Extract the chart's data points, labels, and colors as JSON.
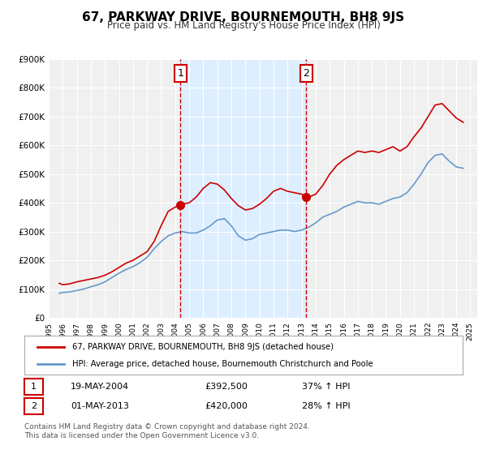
{
  "title": "67, PARKWAY DRIVE, BOURNEMOUTH, BH8 9JS",
  "subtitle": "Price paid vs. HM Land Registry's House Price Index (HPI)",
  "background_color": "#ffffff",
  "plot_bg_color": "#f0f0f0",
  "grid_color": "#ffffff",
  "ylim": [
    0,
    900000
  ],
  "yticks": [
    0,
    100000,
    200000,
    300000,
    400000,
    500000,
    600000,
    700000,
    800000,
    900000
  ],
  "ytick_labels": [
    "£0",
    "£100K",
    "£200K",
    "£300K",
    "£400K",
    "£500K",
    "£600K",
    "£700K",
    "£800K",
    "£900K"
  ],
  "xlim_start": 1995.0,
  "xlim_end": 2025.5,
  "xticks": [
    1995,
    1996,
    1997,
    1998,
    1999,
    2000,
    2001,
    2002,
    2003,
    2004,
    2005,
    2006,
    2007,
    2008,
    2009,
    2010,
    2011,
    2012,
    2013,
    2014,
    2015,
    2016,
    2017,
    2018,
    2019,
    2020,
    2021,
    2022,
    2023,
    2024,
    2025
  ],
  "price_paid_color": "#cc0000",
  "hpi_color": "#6699cc",
  "marker_color": "#cc0000",
  "transaction1_x": 2004.38,
  "transaction1_y": 392500,
  "transaction1_label": "1",
  "transaction1_date": "19-MAY-2004",
  "transaction1_price": "£392,500",
  "transaction1_hpi": "37% ↑ HPI",
  "transaction2_x": 2013.33,
  "transaction2_y": 420000,
  "transaction2_label": "2",
  "transaction2_date": "01-MAY-2013",
  "transaction2_price": "£420,000",
  "transaction2_hpi": "28% ↑ HPI",
  "shaded_region_color": "#ddeeff",
  "legend_line1": "67, PARKWAY DRIVE, BOURNEMOUTH, BH8 9JS (detached house)",
  "legend_line2": "HPI: Average price, detached house, Bournemouth Christchurch and Poole",
  "footer_line1": "Contains HM Land Registry data © Crown copyright and database right 2024.",
  "footer_line2": "This data is licensed under the Open Government Licence v3.0.",
  "price_paid_data_x": [
    1995.75,
    1996.0,
    1996.5,
    1997.0,
    1997.5,
    1998.0,
    1998.5,
    1999.0,
    1999.5,
    2000.0,
    2000.5,
    2001.0,
    2001.5,
    2002.0,
    2002.5,
    2003.0,
    2003.5,
    2004.0,
    2004.38,
    2004.5,
    2005.0,
    2005.5,
    2006.0,
    2006.5,
    2007.0,
    2007.5,
    2008.0,
    2008.5,
    2009.0,
    2009.5,
    2010.0,
    2010.5,
    2011.0,
    2011.5,
    2012.0,
    2012.5,
    2013.0,
    2013.33,
    2013.5,
    2014.0,
    2014.5,
    2015.0,
    2015.5,
    2016.0,
    2016.5,
    2017.0,
    2017.5,
    2018.0,
    2018.5,
    2019.0,
    2019.5,
    2020.0,
    2020.5,
    2021.0,
    2021.5,
    2022.0,
    2022.5,
    2023.0,
    2023.5,
    2024.0,
    2024.5
  ],
  "price_paid_data_y": [
    120000,
    115000,
    118000,
    125000,
    130000,
    135000,
    140000,
    148000,
    160000,
    175000,
    190000,
    200000,
    215000,
    230000,
    265000,
    320000,
    370000,
    385000,
    392500,
    395000,
    400000,
    420000,
    450000,
    470000,
    465000,
    445000,
    415000,
    390000,
    375000,
    380000,
    395000,
    415000,
    440000,
    450000,
    440000,
    435000,
    430000,
    420000,
    420000,
    430000,
    460000,
    500000,
    530000,
    550000,
    565000,
    580000,
    575000,
    580000,
    575000,
    585000,
    595000,
    580000,
    595000,
    630000,
    660000,
    700000,
    740000,
    745000,
    720000,
    695000,
    680000
  ],
  "hpi_data_x": [
    1995.75,
    1996.0,
    1996.5,
    1997.0,
    1997.5,
    1998.0,
    1998.5,
    1999.0,
    1999.5,
    2000.0,
    2000.5,
    2001.0,
    2001.5,
    2002.0,
    2002.5,
    2003.0,
    2003.5,
    2004.0,
    2004.5,
    2005.0,
    2005.5,
    2006.0,
    2006.5,
    2007.0,
    2007.5,
    2008.0,
    2008.5,
    2009.0,
    2009.5,
    2010.0,
    2010.5,
    2011.0,
    2011.5,
    2012.0,
    2012.5,
    2013.0,
    2013.5,
    2014.0,
    2014.5,
    2015.0,
    2015.5,
    2016.0,
    2016.5,
    2017.0,
    2017.5,
    2018.0,
    2018.5,
    2019.0,
    2019.5,
    2020.0,
    2020.5,
    2021.0,
    2021.5,
    2022.0,
    2022.5,
    2023.0,
    2023.5,
    2024.0,
    2024.5
  ],
  "hpi_data_y": [
    85000,
    88000,
    90000,
    95000,
    100000,
    108000,
    115000,
    125000,
    140000,
    155000,
    168000,
    178000,
    192000,
    210000,
    240000,
    265000,
    285000,
    295000,
    300000,
    295000,
    295000,
    305000,
    320000,
    340000,
    345000,
    320000,
    285000,
    270000,
    275000,
    290000,
    295000,
    300000,
    305000,
    305000,
    300000,
    305000,
    315000,
    330000,
    350000,
    360000,
    370000,
    385000,
    395000,
    405000,
    400000,
    400000,
    395000,
    405000,
    415000,
    420000,
    435000,
    465000,
    500000,
    540000,
    565000,
    570000,
    545000,
    525000,
    520000
  ]
}
